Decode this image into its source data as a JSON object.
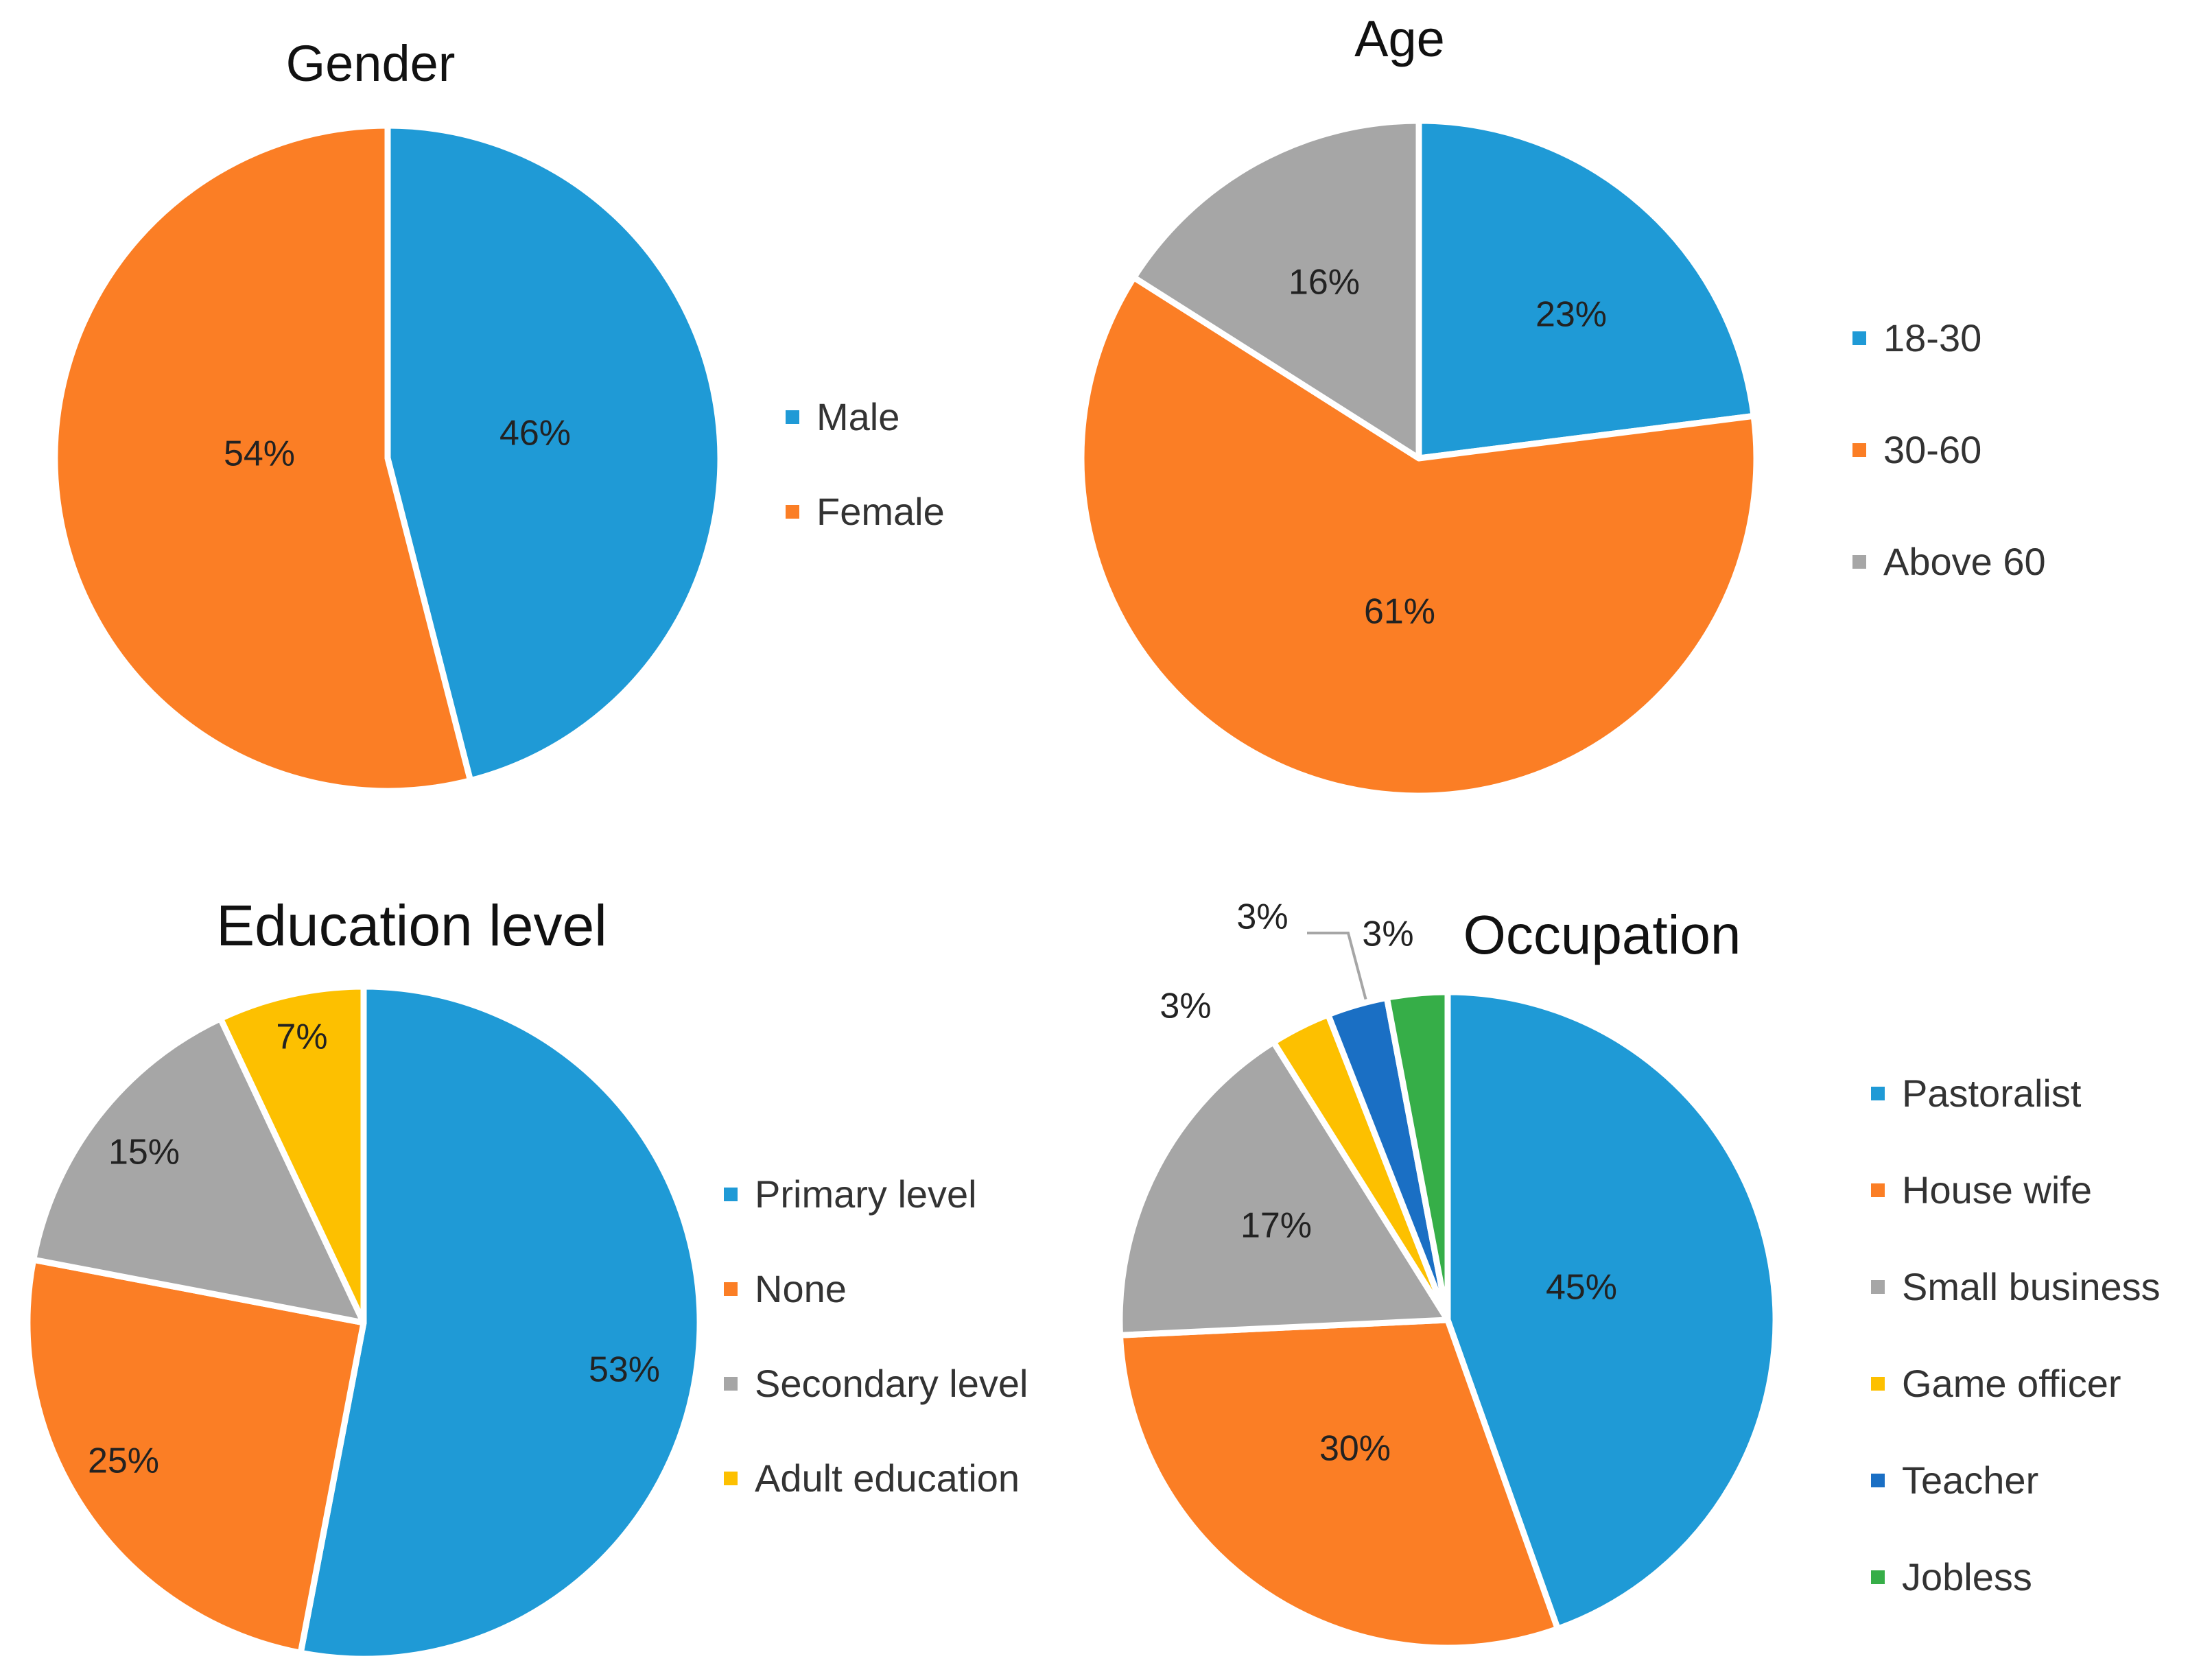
{
  "chart_data": [
    {
      "type": "pie",
      "title": "Gender",
      "categories": [
        "Male",
        "Female"
      ],
      "values": [
        46,
        54
      ],
      "labels": [
        "46%",
        "54%"
      ],
      "colors": [
        "#1f9ad6",
        "#fb7e25"
      ],
      "legend": "right"
    },
    {
      "type": "pie",
      "title": "Age",
      "categories": [
        "18-30",
        "30-60",
        "Above 60"
      ],
      "values": [
        23,
        61,
        16
      ],
      "labels": [
        "23%",
        "61%",
        "16%"
      ],
      "colors": [
        "#1f9ad6",
        "#fb7e25",
        "#a6a6a6"
      ],
      "legend": "right"
    },
    {
      "type": "pie",
      "title": "Education level",
      "categories": [
        "Primary level",
        "None",
        "Secondary level",
        "Adult education"
      ],
      "values": [
        53,
        25,
        15,
        7
      ],
      "labels": [
        "53%",
        "25%",
        "15%",
        "7%"
      ],
      "colors": [
        "#1f9ad6",
        "#fb7e25",
        "#a6a6a6",
        "#fdc000"
      ],
      "legend": "right"
    },
    {
      "type": "pie",
      "title": "Occupation",
      "categories": [
        "Pastoralist",
        "House wife",
        "Small business",
        "Game officer",
        "Teacher",
        "Jobless"
      ],
      "values": [
        45,
        30,
        17,
        3,
        3,
        3
      ],
      "labels": [
        "45%",
        "30%",
        "17%",
        "3%",
        "3%",
        "3%"
      ],
      "colors": [
        "#1f9ad6",
        "#fb7e25",
        "#a6a6a6",
        "#fdc000",
        "#1a6fc4",
        "#36ae48"
      ],
      "legend": "right"
    }
  ]
}
